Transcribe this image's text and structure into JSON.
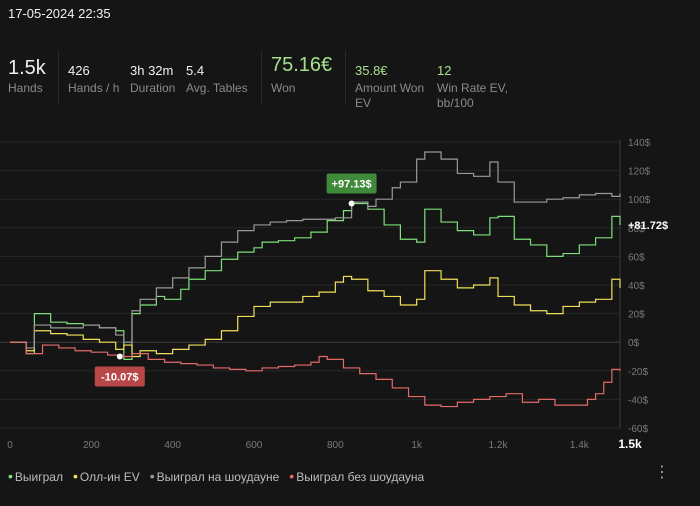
{
  "header": {
    "date": "17-05-2024 22:35"
  },
  "stats": [
    {
      "value": "1.5k",
      "label": "Hands"
    },
    {
      "value": "426",
      "label": "Hands / h"
    },
    {
      "value": "3h 32m",
      "label": "Duration"
    },
    {
      "value": "5.4",
      "label": "Avg. Tables"
    },
    {
      "value": "75.16€",
      "label": "Won"
    },
    {
      "value": "35.8€",
      "label": "Amount Won EV"
    },
    {
      "value": "12",
      "label": "Win Rate EV, bb/100"
    }
  ],
  "chart_data": {
    "type": "line",
    "xlim": [
      0,
      1500
    ],
    "ylim": [
      -60,
      140
    ],
    "x_ticks": [
      0,
      200,
      400,
      600,
      800,
      1000,
      1200,
      1400,
      1500
    ],
    "x_tick_labels": [
      "0",
      "200",
      "400",
      "600",
      "800",
      "1k",
      "1.2k",
      "1.4k",
      "1.5k"
    ],
    "y_ticks": [
      -60,
      -40,
      -20,
      0,
      20,
      40,
      60,
      80,
      100,
      120,
      140
    ],
    "y_tick_labels": [
      "-60$",
      "-40$",
      "-20$",
      "0$",
      "20$",
      "40$",
      "60$",
      "80$",
      "100$",
      "120$",
      "140$"
    ],
    "grid": true,
    "legend_position": "bottom-left",
    "series": [
      {
        "name": "Выиграл",
        "color": "#7ee07a",
        "x": [
          0,
          40,
          60,
          100,
          140,
          180,
          220,
          260,
          280,
          300,
          320,
          360,
          380,
          420,
          440,
          480,
          520,
          560,
          600,
          620,
          660,
          700,
          740,
          780,
          820,
          840,
          880,
          920,
          960,
          1000,
          1020,
          1060,
          1100,
          1140,
          1180,
          1200,
          1240,
          1280,
          1320,
          1360,
          1400,
          1440,
          1480,
          1500
        ],
        "y": [
          0,
          -8,
          20,
          14,
          13,
          12,
          10,
          8,
          -12,
          20,
          26,
          32,
          30,
          37,
          44,
          50,
          58,
          63,
          66,
          70,
          71,
          73,
          77,
          85,
          92,
          97,
          93,
          82,
          72,
          70,
          93,
          84,
          78,
          75,
          87,
          88,
          72,
          68,
          60,
          62,
          68,
          73,
          88,
          82
        ]
      },
      {
        "name": "Олл-ин EV",
        "color": "#f0e05a",
        "x": [
          0,
          40,
          60,
          100,
          140,
          180,
          220,
          260,
          280,
          300,
          320,
          360,
          400,
          440,
          480,
          520,
          560,
          600,
          640,
          680,
          720,
          760,
          800,
          820,
          840,
          880,
          920,
          960,
          1000,
          1020,
          1060,
          1100,
          1140,
          1180,
          1200,
          1240,
          1280,
          1320,
          1360,
          1400,
          1440,
          1480,
          1500
        ],
        "y": [
          0,
          -6,
          8,
          6,
          5,
          2,
          0,
          -5,
          -2,
          -10,
          -6,
          -8,
          -5,
          -2,
          2,
          8,
          18,
          25,
          28,
          28,
          32,
          35,
          42,
          46,
          44,
          36,
          32,
          26,
          30,
          50,
          44,
          38,
          40,
          45,
          32,
          26,
          22,
          20,
          25,
          28,
          30,
          44,
          38
        ]
      },
      {
        "name": "Выиграл на шоудауне",
        "color": "#9a9a9a",
        "x": [
          0,
          40,
          60,
          100,
          140,
          180,
          220,
          260,
          280,
          300,
          320,
          360,
          400,
          440,
          480,
          520,
          560,
          600,
          640,
          680,
          720,
          760,
          800,
          840,
          880,
          900,
          940,
          960,
          1000,
          1020,
          1060,
          1100,
          1140,
          1180,
          1200,
          1240,
          1280,
          1320,
          1360,
          1400,
          1440,
          1480,
          1500
        ],
        "y": [
          0,
          -4,
          12,
          10,
          10,
          12,
          10,
          5,
          0,
          22,
          30,
          38,
          45,
          52,
          60,
          70,
          78,
          82,
          84,
          85,
          86,
          86,
          87,
          98,
          95,
          100,
          108,
          112,
          128,
          133,
          128,
          118,
          116,
          126,
          112,
          98,
          98,
          100,
          101,
          103,
          104,
          102,
          104
        ]
      },
      {
        "name": "Выиграл без шоудауна",
        "color": "#e46a6a",
        "x": [
          0,
          40,
          80,
          120,
          160,
          200,
          240,
          280,
          300,
          340,
          380,
          420,
          460,
          500,
          540,
          580,
          620,
          660,
          700,
          740,
          760,
          780,
          820,
          860,
          900,
          940,
          980,
          1020,
          1060,
          1100,
          1140,
          1180,
          1220,
          1260,
          1300,
          1340,
          1380,
          1420,
          1440,
          1460,
          1480,
          1500
        ],
        "y": [
          0,
          -8,
          -2,
          -4,
          -6,
          -7,
          -9,
          -10,
          -8,
          -12,
          -14,
          -15,
          -16,
          -18,
          -19,
          -20,
          -18,
          -17,
          -16,
          -14,
          -10,
          -12,
          -18,
          -22,
          -26,
          -32,
          -38,
          -44,
          -45,
          -42,
          -40,
          -38,
          -36,
          -42,
          -40,
          -44,
          -44,
          -40,
          -36,
          -28,
          -19,
          -20
        ]
      }
    ],
    "annotations": [
      {
        "text": "+97.13$",
        "x": 840,
        "y": 97,
        "color": "#3f8a3a"
      },
      {
        "text": "-10.07$",
        "x": 270,
        "y": -10,
        "color": "#b84848"
      },
      {
        "text": "+81.72$",
        "x": 1500,
        "y": 82,
        "color": "none"
      }
    ]
  }
}
